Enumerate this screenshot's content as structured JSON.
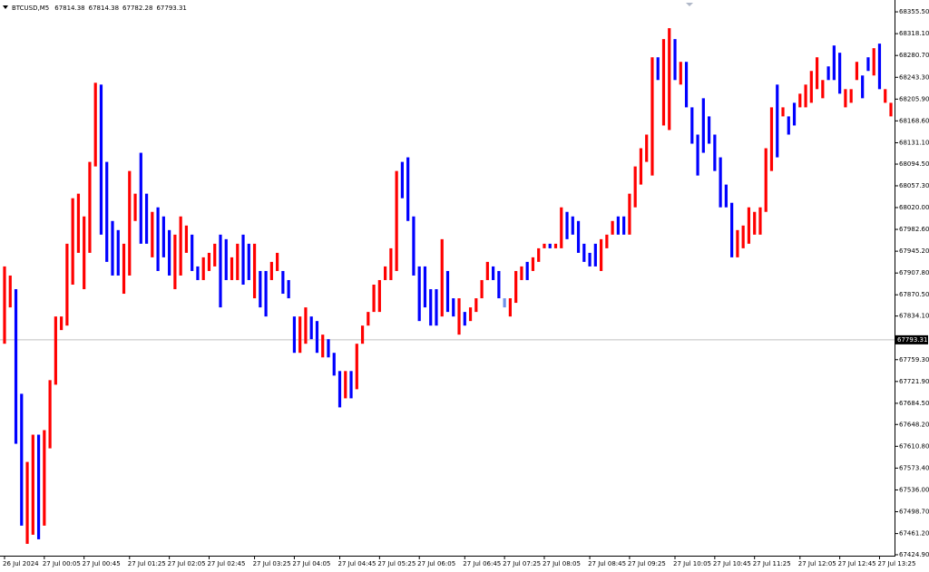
{
  "chart_data": {
    "type": "range_bar",
    "symbol": "BTCUSD,M5",
    "header_values": [
      67814.38,
      67814.38,
      67782.28,
      67793.31
    ],
    "current_price": 67793.31,
    "ylim": [
      67423.3,
      68375.8
    ],
    "yticks": [
      {
        "value": 68355.5,
        "label": "68355.50"
      },
      {
        "value": 68318.1,
        "label": "68318.10"
      },
      {
        "value": 68280.7,
        "label": "68280.70"
      },
      {
        "value": 68243.3,
        "label": "68243.30"
      },
      {
        "value": 68205.9,
        "label": "68205.90"
      },
      {
        "value": 68168.6,
        "label": "68168.60"
      },
      {
        "value": 68131.1,
        "label": "68131.10"
      },
      {
        "value": 68094.5,
        "label": "68094.50"
      },
      {
        "value": 68057.3,
        "label": "68057.30"
      },
      {
        "value": 68020.0,
        "label": "68020.00"
      },
      {
        "value": 67982.6,
        "label": "67982.60"
      },
      {
        "value": 67945.2,
        "label": "67945.20"
      },
      {
        "value": 67907.8,
        "label": "67907.80"
      },
      {
        "value": 67870.5,
        "label": "67870.50"
      },
      {
        "value": 67834.1,
        "label": "67834.10"
      },
      {
        "value": 67759.3,
        "label": "67759.30"
      },
      {
        "value": 67721.9,
        "label": "67721.90"
      },
      {
        "value": 67684.5,
        "label": "67684.50"
      },
      {
        "value": 67648.2,
        "label": "67648.20"
      },
      {
        "value": 67610.8,
        "label": "67610.80"
      },
      {
        "value": 67573.4,
        "label": "67573.40"
      },
      {
        "value": 67536.0,
        "label": "67536.00"
      },
      {
        "value": 67498.7,
        "label": "67498.70"
      },
      {
        "value": 67461.2,
        "label": "67461.20"
      },
      {
        "value": 67424.9,
        "label": "67424.90"
      }
    ],
    "categories": [
      "26 Jul 2024",
      null,
      null,
      null,
      null,
      null,
      null,
      "27 Jul 00:05",
      null,
      null,
      null,
      null,
      null,
      null,
      "27 Jul 00:45",
      null,
      null,
      null,
      null,
      null,
      null,
      null,
      "27 Jul 01:25",
      null,
      null,
      null,
      null,
      null,
      null,
      "27 Jul 02:05",
      null,
      null,
      null,
      null,
      null,
      null,
      "27 Jul 02:45",
      null,
      null,
      null,
      null,
      null,
      null,
      null,
      "27 Jul 03:25",
      null,
      null,
      null,
      null,
      null,
      null,
      "27 Jul 04:05",
      null,
      null,
      null,
      null,
      null,
      null,
      null,
      "27 Jul 04:45",
      null,
      null,
      null,
      null,
      null,
      null,
      "27 Jul 05:25",
      null,
      null,
      null,
      null,
      null,
      null,
      "27 Jul 06:05",
      null,
      null,
      null,
      null,
      null,
      null,
      null,
      "27 Jul 06:45",
      null,
      null,
      null,
      null,
      null,
      null,
      "27 Jul 07:25",
      null,
      null,
      null,
      null,
      null,
      null,
      "27 Jul 08:05",
      null,
      null,
      null,
      null,
      null,
      null,
      null,
      "27 Jul 08:45",
      null,
      null,
      null,
      null,
      null,
      null,
      "27 Jul 09:25",
      null,
      null,
      null,
      null,
      null,
      null,
      null,
      "27 Jul 10:05",
      null,
      null,
      null,
      null,
      null,
      null,
      "27 Jul 10:45",
      null,
      null,
      null,
      null,
      null,
      null,
      "27 Jul 11:25",
      null,
      null,
      null,
      null,
      null,
      null,
      null,
      "27 Jul 12:05",
      null,
      null,
      null,
      null,
      null,
      null,
      "27 Jul 12:45",
      null,
      null,
      null,
      null,
      null,
      null,
      "27 Jul 13:25",
      null,
      null
    ],
    "high": [
      67919.1,
      67903.5,
      67880.1,
      67700.8,
      67584.0,
      67630.7,
      67630.7,
      67638.5,
      67724.2,
      67833.3,
      67833.3,
      67958.0,
      68036.0,
      68043.8,
      68004.8,
      68098.3,
      68233.9,
      68230.8,
      68098.3,
      67997.0,
      67981.4,
      67958.0,
      68082.7,
      68043.8,
      68113.9,
      68043.8,
      68012.6,
      68020.4,
      68004.8,
      67981.4,
      67973.6,
      68004.8,
      67989.2,
      67973.6,
      67919.1,
      67934.7,
      67942.4,
      67958.0,
      67973.6,
      67965.8,
      67934.7,
      67958.0,
      67973.6,
      67958.0,
      67958.0,
      67911.3,
      67911.3,
      67926.9,
      67942.4,
      67911.3,
      67895.7,
      67833.3,
      67833.3,
      67848.9,
      67833.3,
      67825.5,
      67802.2,
      67794.4,
      67771.0,
      67739.8,
      67739.8,
      67739.8,
      67786.6,
      67817.7,
      67841.1,
      67887.9,
      67895.7,
      67919.1,
      67950.2,
      68082.7,
      68098.3,
      68106.1,
      68004.8,
      67919.1,
      67919.1,
      67880.1,
      67880.1,
      67965.8,
      67911.3,
      67864.5,
      67864.5,
      67841.1,
      67848.9,
      67864.5,
      67895.7,
      67926.9,
      67919.1,
      67911.3,
      67864.5,
      67864.5,
      67911.3,
      67919.1,
      67926.9,
      67934.7,
      67950.2,
      67958.0,
      67958.0,
      67958.0,
      68020.4,
      68012.6,
      68004.8,
      67997.0,
      67958.0,
      67942.4,
      67958.0,
      67965.8,
      67973.6,
      67997.0,
      68004.8,
      68004.8,
      68043.8,
      68090.5,
      68121.7,
      68145.1,
      68277.6,
      68277.6,
      68308.8,
      68327.5,
      68308.8,
      68269.8,
      68269.8,
      68191.8,
      68145.1,
      68207.4,
      68176.3,
      68145.1,
      68106.1,
      68059.4,
      68028.2,
      67981.4,
      67989.2,
      68020.4,
      68012.6,
      68020.4,
      68121.7,
      68191.8,
      68230.8,
      68191.8,
      68176.3,
      68199.6,
      68215.2,
      68230.8,
      68254.2,
      68277.6,
      68238.6,
      68262.0,
      68297.8,
      68285.4,
      68223.0,
      68223.0,
      68269.8,
      68246.4,
      68277.6,
      68293.2,
      68301.0,
      68223.0,
      68199.6
    ],
    "low": [
      67786.6,
      67848.9,
      67615.1,
      67474.8,
      67443.6,
      67459.2,
      67451.4,
      67474.8,
      67607.3,
      67716.4,
      67810.0,
      67817.7,
      67887.9,
      67942.4,
      67880.1,
      67942.4,
      68090.5,
      67973.6,
      67926.9,
      67903.5,
      67903.5,
      67872.3,
      67903.5,
      67997.0,
      67958.0,
      67958.0,
      67934.7,
      67911.3,
      67934.7,
      67903.5,
      67880.1,
      67903.5,
      67942.4,
      67911.3,
      67895.7,
      67895.7,
      67911.3,
      67919.1,
      67848.9,
      67895.7,
      67895.7,
      67895.7,
      67887.9,
      67895.7,
      67864.5,
      67848.9,
      67833.3,
      67895.7,
      67911.3,
      67872.3,
      67864.5,
      67771.0,
      67771.0,
      67786.6,
      67794.4,
      67771.0,
      67763.2,
      67763.2,
      67732.0,
      67677.5,
      67693.0,
      67693.0,
      67708.6,
      67786.6,
      67817.7,
      67841.1,
      67841.1,
      67895.7,
      67895.7,
      67911.3,
      68036.0,
      67997.0,
      67903.5,
      67825.5,
      67848.9,
      67817.7,
      67817.7,
      67833.3,
      67841.1,
      67833.3,
      67802.2,
      67817.7,
      67825.5,
      67841.1,
      67864.5,
      67895.7,
      67895.7,
      67864.5,
      67848.9,
      67833.3,
      67856.7,
      67895.7,
      67895.7,
      67911.3,
      67926.9,
      67950.2,
      67950.2,
      67950.2,
      67950.2,
      67965.8,
      67973.6,
      67942.4,
      67926.9,
      67919.1,
      67919.1,
      67911.3,
      67950.2,
      67973.6,
      67973.6,
      67973.6,
      67973.6,
      68020.4,
      68059.4,
      68098.3,
      68074.9,
      68238.6,
      68160.7,
      68152.9,
      68238.6,
      68230.8,
      68191.8,
      68129.5,
      68074.9,
      68113.9,
      68129.5,
      68082.7,
      68020.4,
      68020.4,
      67934.7,
      67934.7,
      67950.2,
      67958.0,
      67973.6,
      67973.6,
      68012.6,
      68082.7,
      68106.1,
      68176.3,
      68145.1,
      68160.7,
      68191.8,
      68191.8,
      68199.6,
      68223.0,
      68207.4,
      68238.6,
      68238.6,
      68215.2,
      68191.8,
      68199.6,
      68238.6,
      68207.4,
      68254.2,
      68246.4,
      68223.0,
      68199.6,
      68176.3
    ],
    "colors": [
      "#ff0000",
      "#ff0000",
      "#0000ff",
      "#0000ff",
      "#ff0000",
      "#ff0000",
      "#0000ff",
      "#ff0000",
      "#ff0000",
      "#ff0000",
      "#ff0000",
      "#ff0000",
      "#ff0000",
      "#ff0000",
      "#ff0000",
      "#ff0000",
      "#ff0000",
      "#0000ff",
      "#0000ff",
      "#0000ff",
      "#0000ff",
      "#ff0000",
      "#ff0000",
      "#ff0000",
      "#0000ff",
      "#0000ff",
      "#ff0000",
      "#0000ff",
      "#0000ff",
      "#0000ff",
      "#ff0000",
      "#ff0000",
      "#ff0000",
      "#0000ff",
      "#0000ff",
      "#ff0000",
      "#ff0000",
      "#ff0000",
      "#0000ff",
      "#0000ff",
      "#ff0000",
      "#ff0000",
      "#0000ff",
      "#0000ff",
      "#ff0000",
      "#0000ff",
      "#0000ff",
      "#ff0000",
      "#ff0000",
      "#0000ff",
      "#0000ff",
      "#0000ff",
      "#ff0000",
      "#ff0000",
      "#0000ff",
      "#0000ff",
      "#ff0000",
      "#0000ff",
      "#0000ff",
      "#0000ff",
      "#ff0000",
      "#0000ff",
      "#ff0000",
      "#ff0000",
      "#ff0000",
      "#ff0000",
      "#ff0000",
      "#ff0000",
      "#ff0000",
      "#ff0000",
      "#0000ff",
      "#0000ff",
      "#0000ff",
      "#0000ff",
      "#0000ff",
      "#0000ff",
      "#0000ff",
      "#ff0000",
      "#0000ff",
      "#0000ff",
      "#ff0000",
      "#0000ff",
      "#ff0000",
      "#ff0000",
      "#ff0000",
      "#ff0000",
      "#0000ff",
      "#0000ff",
      "#6f8fe8",
      "#ff0000",
      "#ff0000",
      "#ff0000",
      "#0000ff",
      "#ff0000",
      "#ff0000",
      "#ff0000",
      "#0000ff",
      "#ff0000",
      "#ff0000",
      "#0000ff",
      "#0000ff",
      "#0000ff",
      "#0000ff",
      "#0000ff",
      "#0000ff",
      "#ff0000",
      "#ff0000",
      "#ff0000",
      "#0000ff",
      "#0000ff",
      "#ff0000",
      "#ff0000",
      "#ff0000",
      "#ff0000",
      "#ff0000",
      "#0000ff",
      "#ff0000",
      "#ff0000",
      "#0000ff",
      "#ff0000",
      "#0000ff",
      "#0000ff",
      "#0000ff",
      "#0000ff",
      "#0000ff",
      "#0000ff",
      "#0000ff",
      "#0000ff",
      "#0000ff",
      "#ff0000",
      "#ff0000",
      "#ff0000",
      "#ff0000",
      "#ff0000",
      "#ff0000",
      "#ff0000",
      "#0000ff",
      "#ff0000",
      "#0000ff",
      "#0000ff",
      "#ff0000",
      "#ff0000",
      "#ff0000",
      "#ff0000",
      "#ff0000",
      "#0000ff",
      "#0000ff",
      "#0000ff",
      "#ff0000",
      "#ff0000",
      "#ff0000",
      "#0000ff",
      "#0000ff",
      "#ff0000",
      "#0000ff",
      "#ff0000",
      "#ff0000"
    ]
  }
}
